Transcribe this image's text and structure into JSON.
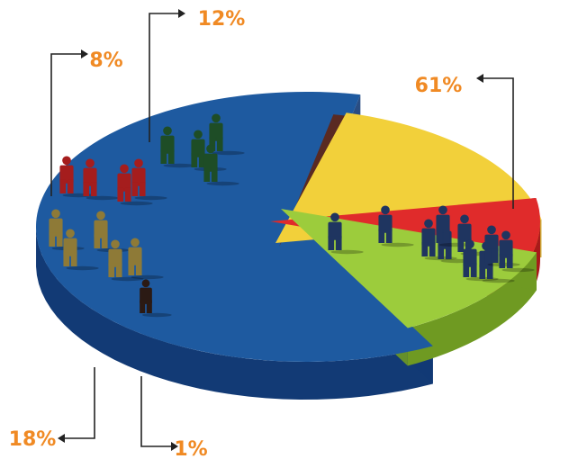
{
  "chart_data": {
    "type": "pie",
    "style": "3d exploded pie with people silhouettes",
    "title": "",
    "legend": "none",
    "slices": [
      {
        "label": "61%",
        "value": 61,
        "color": "#1e5aa0",
        "side_color": "#123a75",
        "figure_color": "#1f3560"
      },
      {
        "label": "1%",
        "value": 1,
        "color": "#5a2a22",
        "side_color": "#3e1b16",
        "figure_color": "#2b1a14"
      },
      {
        "label": "18%",
        "value": 18,
        "color": "#f2d03a",
        "side_color": "#c9a41f",
        "figure_color": "#8e7a37"
      },
      {
        "label": "8%",
        "value": 8,
        "color": "#e02b2b",
        "side_color": "#a81a1a",
        "figure_color": "#a51d1d"
      },
      {
        "label": "12%",
        "value": 12,
        "color": "#9ccc3c",
        "side_color": "#6f9a22",
        "figure_color": "#1e4d26"
      }
    ],
    "label_color": "#f08a24"
  }
}
